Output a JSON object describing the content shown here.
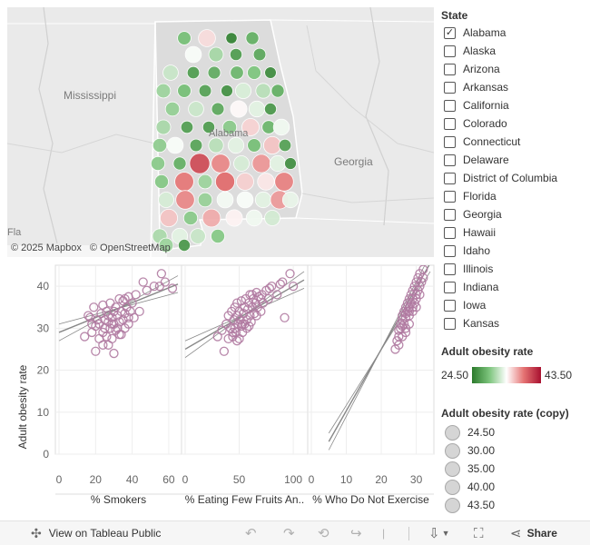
{
  "map": {
    "labels": {
      "mississippi": "Mississippi",
      "georgia": "Georgia",
      "alabama": "Alabama",
      "fl": "Fla"
    },
    "attribution": [
      "© 2025 Mapbox",
      "© OpenStreetMap"
    ],
    "counties": [
      {
        "v": 29.0
      },
      {
        "v": 35.2
      },
      {
        "v": 25.2
      },
      {
        "v": 28.0
      },
      {
        "v": 33.8
      },
      {
        "v": 30.8
      },
      {
        "v": 26.8
      },
      {
        "v": 27.5
      },
      {
        "v": 32.0
      },
      {
        "v": 26.9
      },
      {
        "v": 27.8
      },
      {
        "v": 28.5
      },
      {
        "v": 29.4
      },
      {
        "v": 25.8
      },
      {
        "v": 30.5
      },
      {
        "v": 29.0
      },
      {
        "v": 27.2
      },
      {
        "v": 26.1
      },
      {
        "v": 32.6
      },
      {
        "v": 31.5
      },
      {
        "v": 28.0
      },
      {
        "v": 30.2
      },
      {
        "v": 32.1
      },
      {
        "v": 27.6
      },
      {
        "v": 34.2
      },
      {
        "v": 33.0
      },
      {
        "v": 26.5
      },
      {
        "v": 30.9
      },
      {
        "v": 27.0
      },
      {
        "v": 26.8
      },
      {
        "v": 29.8
      },
      {
        "v": 35.5
      },
      {
        "v": 28.5
      },
      {
        "v": 33.5
      },
      {
        "v": 30.0
      },
      {
        "v": 33.8
      },
      {
        "v": 27.3
      },
      {
        "v": 31.5
      },
      {
        "v": 33.0
      },
      {
        "v": 29.0
      },
      {
        "v": 36.0
      },
      {
        "v": 27.1
      },
      {
        "v": 29.8
      },
      {
        "v": 28.0
      },
      {
        "v": 40.5
      },
      {
        "v": 38.0
      },
      {
        "v": 32.5
      },
      {
        "v": 37.5
      },
      {
        "v": 33.0
      },
      {
        "v": 26.0
      },
      {
        "v": 29.6
      },
      {
        "v": 38.5
      },
      {
        "v": 30.5
      },
      {
        "v": 39.0
      },
      {
        "v": 35.6
      },
      {
        "v": 34.8
      },
      {
        "v": 38.2
      },
      {
        "v": 32.5
      },
      {
        "v": 38.0
      },
      {
        "v": 30.3
      },
      {
        "v": 33.6
      },
      {
        "v": 33.8
      },
      {
        "v": 33.0
      },
      {
        "v": 37.4
      },
      {
        "v": 33.2
      },
      {
        "v": 36.0
      },
      {
        "v": 29.8
      },
      {
        "v": 36.8
      },
      {
        "v": 34.4
      },
      {
        "v": 33.5
      },
      {
        "v": 32.4
      },
      {
        "v": 31.0
      },
      {
        "v": 33.0
      },
      {
        "v": 32.0
      },
      {
        "v": 29.7
      },
      {
        "v": 30.5
      },
      {
        "v": 26.5
      },
      {
        "v": 30.5
      },
      {
        "v": 27.8
      },
      {
        "v": 29.0
      },
      {
        "v": 26.8
      },
      {
        "v": 24.5
      }
    ]
  },
  "chart_data": {
    "type": "scatter",
    "ylabel": "Adult obesity rate",
    "ylim": [
      0,
      45
    ],
    "yticks": [
      0,
      10,
      20,
      30,
      40
    ],
    "panels": [
      {
        "xlabel": "% Smokers",
        "xlim": [
          0,
          65
        ],
        "xticks": [
          0,
          20,
          40,
          60
        ],
        "trend": {
          "x0": 0,
          "y0": 29.0,
          "x1": 65,
          "y1": 40.5
        },
        "points": [
          [
            14,
            28
          ],
          [
            16,
            33
          ],
          [
            17,
            32.5
          ],
          [
            18,
            29
          ],
          [
            18,
            31
          ],
          [
            19,
            35
          ],
          [
            20,
            30.5
          ],
          [
            21,
            32
          ],
          [
            22,
            27.5
          ],
          [
            22,
            31
          ],
          [
            23,
            33.5
          ],
          [
            24,
            29
          ],
          [
            24,
            35.5
          ],
          [
            25,
            30
          ],
          [
            25,
            32
          ],
          [
            26,
            34
          ],
          [
            26,
            28
          ],
          [
            27,
            31.5
          ],
          [
            27,
            33
          ],
          [
            28,
            30
          ],
          [
            28,
            36
          ],
          [
            29,
            32.5
          ],
          [
            29,
            27.5
          ],
          [
            30,
            34
          ],
          [
            30,
            31
          ],
          [
            31,
            29.5
          ],
          [
            31,
            35
          ],
          [
            32,
            33
          ],
          [
            32,
            30
          ],
          [
            33,
            37
          ],
          [
            33,
            31.5
          ],
          [
            34,
            28.5
          ],
          [
            34,
            34
          ],
          [
            35,
            32
          ],
          [
            35,
            36.5
          ],
          [
            36,
            30
          ],
          [
            36,
            33.5
          ],
          [
            37,
            35
          ],
          [
            38,
            31
          ],
          [
            38,
            37.5
          ],
          [
            39,
            34
          ],
          [
            40,
            36
          ],
          [
            41,
            32.5
          ],
          [
            42,
            38
          ],
          [
            44,
            34
          ],
          [
            46,
            41
          ],
          [
            48,
            39
          ],
          [
            52,
            40
          ],
          [
            55,
            40
          ],
          [
            56,
            43
          ],
          [
            58,
            41
          ],
          [
            62,
            39.5
          ],
          [
            20,
            24.5
          ],
          [
            24,
            26
          ],
          [
            30,
            24
          ],
          [
            27,
            26
          ],
          [
            33,
            28.5
          ],
          [
            36,
            37
          ],
          [
            29,
            31
          ],
          [
            38,
            32.5
          ]
        ]
      },
      {
        "xlabel": "% Eating Few Fruits An..",
        "xlim": [
          0,
          110
        ],
        "xticks": [
          0,
          50,
          100
        ],
        "trend": {
          "x0": 0,
          "y0": 25.0,
          "x1": 110,
          "y1": 41.5
        },
        "points": [
          [
            30,
            28
          ],
          [
            34,
            29.5
          ],
          [
            36,
            24.5
          ],
          [
            38,
            31
          ],
          [
            40,
            33
          ],
          [
            40,
            27.5
          ],
          [
            42,
            30
          ],
          [
            43,
            34
          ],
          [
            44,
            28
          ],
          [
            45,
            32
          ],
          [
            46,
            35
          ],
          [
            46,
            30
          ],
          [
            47,
            29
          ],
          [
            48,
            33
          ],
          [
            48,
            36
          ],
          [
            49,
            31
          ],
          [
            50,
            27.5
          ],
          [
            50,
            34
          ],
          [
            51,
            32
          ],
          [
            52,
            30.5
          ],
          [
            52,
            36.5
          ],
          [
            53,
            29
          ],
          [
            54,
            33.5
          ],
          [
            55,
            31
          ],
          [
            55,
            35
          ],
          [
            56,
            37
          ],
          [
            57,
            32
          ],
          [
            57,
            30
          ],
          [
            58,
            34.5
          ],
          [
            59,
            36
          ],
          [
            60,
            33
          ],
          [
            60,
            38
          ],
          [
            61,
            31.5
          ],
          [
            62,
            35
          ],
          [
            63,
            37
          ],
          [
            64,
            33.5
          ],
          [
            65,
            36
          ],
          [
            66,
            38.5
          ],
          [
            67,
            35
          ],
          [
            68,
            37.5
          ],
          [
            70,
            34
          ],
          [
            71,
            38
          ],
          [
            72,
            36
          ],
          [
            75,
            39
          ],
          [
            77,
            37
          ],
          [
            80,
            40
          ],
          [
            85,
            38
          ],
          [
            88,
            40.5
          ],
          [
            90,
            41
          ],
          [
            92,
            32.5
          ],
          [
            97,
            43
          ],
          [
            100,
            40
          ],
          [
            44,
            29
          ],
          [
            48,
            27
          ],
          [
            53,
            31
          ],
          [
            59,
            30.5
          ],
          [
            62,
            38
          ],
          [
            66,
            33
          ],
          [
            70,
            37
          ],
          [
            78,
            39.5
          ]
        ]
      },
      {
        "xlabel": "% Who Do Not Exercise",
        "xlim": [
          0,
          34
        ],
        "xticks": [
          0,
          10,
          20,
          30
        ],
        "trend": {
          "x0": 5,
          "y0": 3.0,
          "x1": 34,
          "y1": 45.5
        },
        "points": [
          [
            24,
            25
          ],
          [
            24.5,
            27
          ],
          [
            25,
            28
          ],
          [
            25,
            29.5
          ],
          [
            25.5,
            30
          ],
          [
            25.5,
            31
          ],
          [
            26,
            30.5
          ],
          [
            26,
            32
          ],
          [
            26,
            33
          ],
          [
            26.5,
            31
          ],
          [
            26.5,
            34
          ],
          [
            27,
            32.5
          ],
          [
            27,
            33.5
          ],
          [
            27,
            35
          ],
          [
            27,
            29
          ],
          [
            27.5,
            34
          ],
          [
            27.5,
            36
          ],
          [
            28,
            33
          ],
          [
            28,
            35
          ],
          [
            28,
            37
          ],
          [
            28,
            31
          ],
          [
            28.5,
            36
          ],
          [
            28.5,
            38
          ],
          [
            29,
            34
          ],
          [
            29,
            37
          ],
          [
            29,
            39
          ],
          [
            29.5,
            36
          ],
          [
            29.5,
            40
          ],
          [
            30,
            38
          ],
          [
            30,
            41
          ],
          [
            30,
            35
          ],
          [
            30.5,
            39
          ],
          [
            30.5,
            42
          ],
          [
            31,
            40
          ],
          [
            31,
            43
          ],
          [
            31.5,
            41
          ],
          [
            32,
            44
          ],
          [
            32,
            42
          ],
          [
            25,
            26
          ],
          [
            26,
            28
          ],
          [
            27,
            30
          ],
          [
            28,
            34
          ],
          [
            29,
            35
          ],
          [
            30,
            37
          ],
          [
            31,
            38
          ]
        ]
      }
    ]
  },
  "legend": {
    "state_title": "State",
    "states": [
      {
        "name": "Alabama",
        "checked": true
      },
      {
        "name": "Alaska",
        "checked": false
      },
      {
        "name": "Arizona",
        "checked": false
      },
      {
        "name": "Arkansas",
        "checked": false
      },
      {
        "name": "California",
        "checked": false
      },
      {
        "name": "Colorado",
        "checked": false
      },
      {
        "name": "Connecticut",
        "checked": false
      },
      {
        "name": "Delaware",
        "checked": false
      },
      {
        "name": "District of Columbia",
        "checked": false
      },
      {
        "name": "Florida",
        "checked": false
      },
      {
        "name": "Georgia",
        "checked": false
      },
      {
        "name": "Hawaii",
        "checked": false
      },
      {
        "name": "Idaho",
        "checked": false
      },
      {
        "name": "Illinois",
        "checked": false
      },
      {
        "name": "Indiana",
        "checked": false
      },
      {
        "name": "Iowa",
        "checked": false
      },
      {
        "name": "Kansas",
        "checked": false
      }
    ],
    "color_title": "Adult obesity rate",
    "color_min": "24.50",
    "color_max": "43.50",
    "color_scale": [
      "#2c7a2c",
      "#7cc47c",
      "#ffffff",
      "#e57373",
      "#a8102f"
    ],
    "size_title": "Adult obesity rate (copy)",
    "size_values": [
      "24.50",
      "30.00",
      "35.00",
      "40.00",
      "43.50"
    ]
  },
  "toolbar": {
    "view_label": "View on Tableau Public",
    "share_label": "Share"
  },
  "colors": {
    "marker": "#b07aa1",
    "marker_fill": "#c49cbc",
    "trend": "#888888",
    "grid": "#eeeeee"
  }
}
